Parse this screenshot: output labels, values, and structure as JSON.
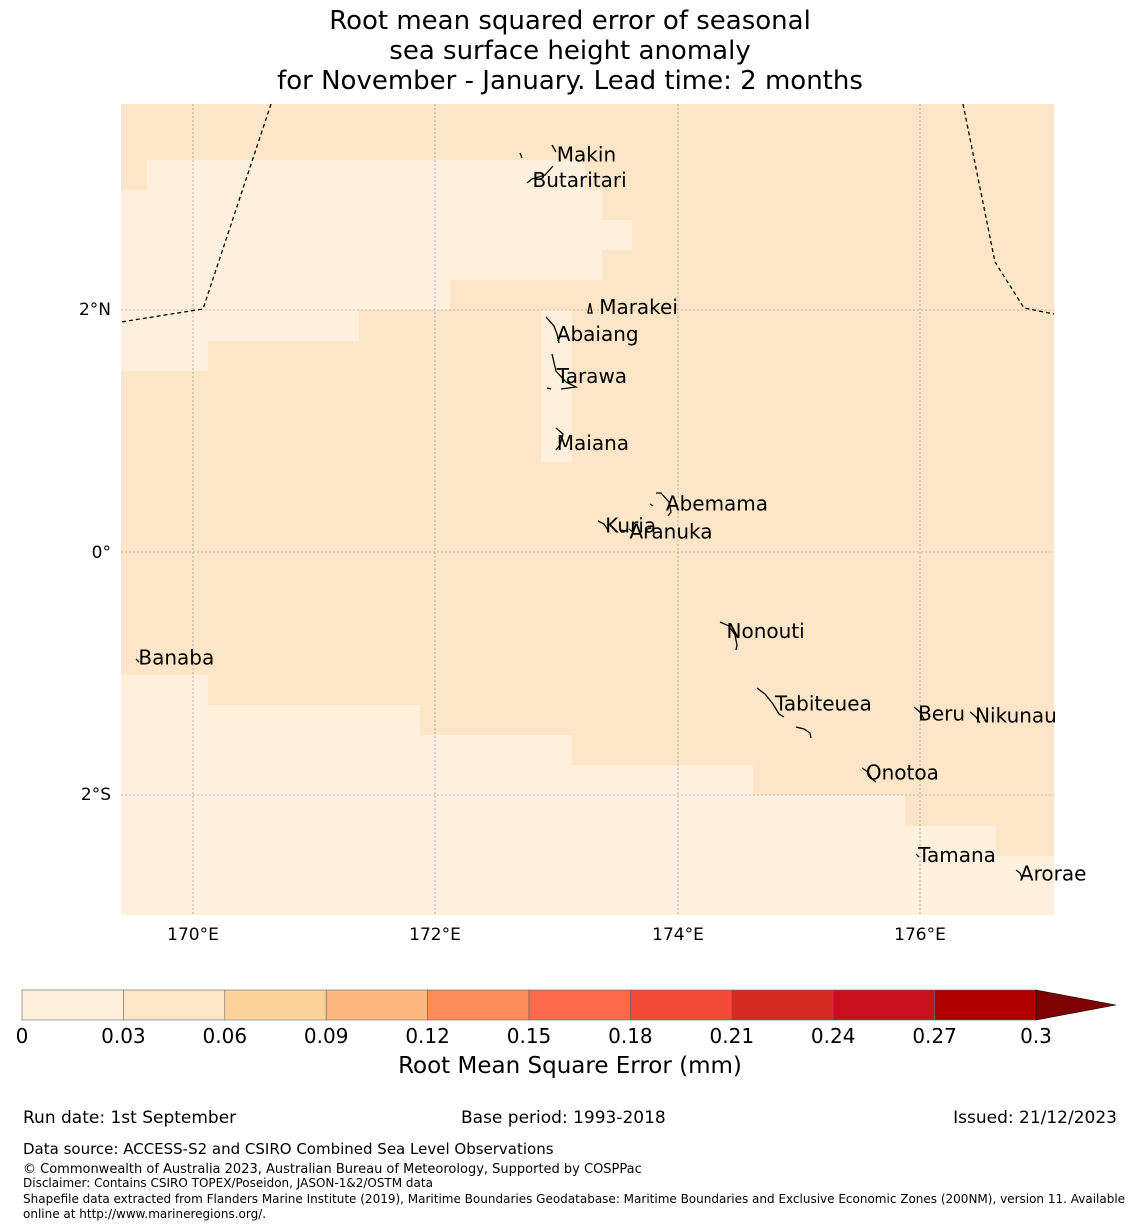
{
  "title": {
    "line1": "Root mean squared error of seasonal",
    "line2": "sea surface height anomaly",
    "line3": "for November - January. Lead time: 2 months"
  },
  "map": {
    "lon_range": [
      169.4,
      177.1
    ],
    "lat_range": [
      -2.95,
      3.75
    ],
    "lon_ticks": [
      {
        "value": 170,
        "label": "170°E"
      },
      {
        "value": 172,
        "label": "172°E"
      },
      {
        "value": 174,
        "label": "174°E"
      },
      {
        "value": 176,
        "label": "176°E"
      }
    ],
    "lat_ticks": [
      {
        "value": 2,
        "label": "2°N"
      },
      {
        "value": 0,
        "label": "0°"
      },
      {
        "value": -2,
        "label": "2°S"
      }
    ],
    "colors": {
      "rmse_0_003": "#fef0dc",
      "rmse_003_006": "#fde6c7",
      "eez_boundary": "#000000",
      "grid": "#888888"
    },
    "islands": [
      {
        "name": "Makin",
        "lon": 173.0,
        "lat": 3.28
      },
      {
        "name": "Butaritari",
        "lon": 172.8,
        "lat": 3.07
      },
      {
        "name": "Marakei",
        "lon": 173.35,
        "lat": 2.02
      },
      {
        "name": "Abaiang",
        "lon": 173.0,
        "lat": 1.8
      },
      {
        "name": "Tarawa",
        "lon": 173.0,
        "lat": 1.45
      },
      {
        "name": "Maiana",
        "lon": 173.0,
        "lat": 0.9
      },
      {
        "name": "Abemama",
        "lon": 173.9,
        "lat": 0.4
      },
      {
        "name": "Kuria",
        "lon": 173.4,
        "lat": 0.22
      },
      {
        "name": "Aranuka",
        "lon": 173.6,
        "lat": 0.17
      },
      {
        "name": "Nonouti",
        "lon": 174.4,
        "lat": -0.65
      },
      {
        "name": "Banaba",
        "lon": 169.55,
        "lat": -0.87
      },
      {
        "name": "Tabiteuea",
        "lon": 174.8,
        "lat": -1.25
      },
      {
        "name": "Beru",
        "lon": 175.98,
        "lat": -1.33
      },
      {
        "name": "Nikunau",
        "lon": 176.45,
        "lat": -1.35
      },
      {
        "name": "Onotoa",
        "lon": 175.55,
        "lat": -1.82
      },
      {
        "name": "Tamana",
        "lon": 175.98,
        "lat": -2.5
      },
      {
        "name": "Arorae",
        "lon": 176.82,
        "lat": -2.65
      }
    ]
  },
  "colorbar": {
    "label": "Root Mean Square Error (mm)",
    "ticks": [
      "0",
      "0.03",
      "0.06",
      "0.09",
      "0.12",
      "0.15",
      "0.18",
      "0.21",
      "0.24",
      "0.27",
      "0.3"
    ],
    "colors": [
      "#fef0dc",
      "#fde6c7",
      "#fdd39c",
      "#fcb97f",
      "#fb8d5b",
      "#fb6a4a",
      "#f34a36",
      "#d52a21",
      "#c6101b",
      "#b00000"
    ],
    "extend_color": "#7f0000"
  },
  "footer": {
    "run_date": "Run date: 1st September",
    "base_period": "Base period: 1993-2018",
    "issued": "Issued: 21/12/2023",
    "data_source": "Data source: ACCESS-S2 and CSIRO Combined Sea Level Observations",
    "copyright": "© Commonwealth of Australia 2023, Australian Bureau of Meteorology, Supported by COSPPac",
    "disclaimer": "Disclaimer: Contains CSIRO TOPEX/Poseidon, JASON-1&2/OSTM data",
    "shapefile_line1": "Shapefile data extracted from Flanders Marine Institute (2019), Maritime Boundaries Geodatabase: Maritime Boundaries and Exclusive Economic Zones (200NM), version 11. Available",
    "shapefile_line2": "online at http://www.marineregions.org/."
  }
}
